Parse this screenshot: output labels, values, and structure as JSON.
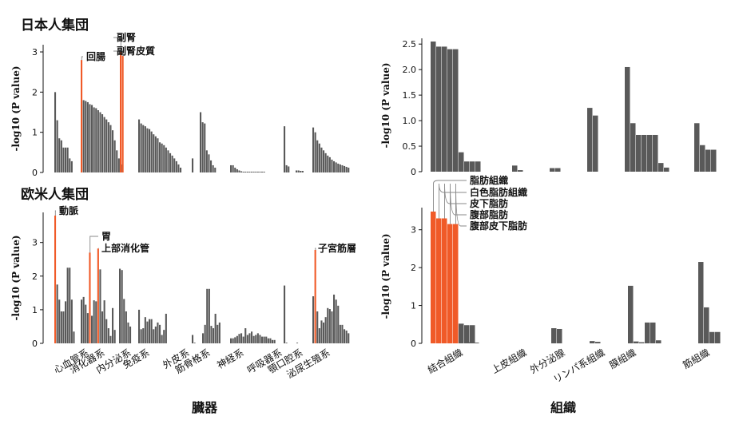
{
  "figure": {
    "x_title_left": "臓器",
    "x_title_right": "組織",
    "ylabel": "-log10 (P value)",
    "highlight_color": "#F05A28",
    "bar_color": "#595959"
  },
  "organ_categories": [
    "心血管系",
    "消化器系",
    "内分泌系",
    "免疫系",
    "外皮系",
    "筋骨格系",
    "神経系",
    "呼吸器系",
    "顎口腔系",
    "泌尿生殖系"
  ],
  "tissue_categories": [
    "結合組織",
    "上皮組織",
    "外分泌腺",
    "リンパ系組織",
    "膜組織",
    "筋組織"
  ],
  "chart_data": [
    {
      "id": "japanese-organ",
      "type": "bar",
      "title": "日本人集団",
      "ylabel": "-log10 (P value)",
      "ylim": [
        0,
        3.1
      ],
      "yticks": [
        0,
        1,
        2,
        3
      ],
      "groups": [
        {
          "category": "心血管系",
          "values": [
            2.0,
            1.3,
            0.85,
            0.8,
            0.62,
            0.62,
            0.62,
            0.35,
            0.28
          ]
        },
        {
          "category": "消化器系",
          "values": [
            2.8,
            1.8,
            1.78,
            1.75,
            1.7,
            1.68,
            1.62,
            1.6,
            1.55,
            1.5,
            1.45,
            1.38,
            1.32,
            1.25,
            1.18,
            1.05,
            0.8,
            0.55,
            0.35,
            0.2
          ]
        },
        {
          "category": "副腎",
          "values": [
            3.0,
            2.9
          ]
        },
        {
          "category": "内分泌系/免疫系",
          "values": [
            1.32,
            1.22,
            1.18,
            1.15,
            1.1,
            1.08,
            1.02,
            0.95,
            0.9,
            0.85,
            0.75,
            0.72,
            0.68,
            0.62,
            0.55,
            0.48,
            0.42,
            0.35,
            0.28,
            0.2,
            0.12
          ]
        },
        {
          "category": "外皮系",
          "values": [
            0.35
          ]
        },
        {
          "category": "筋骨格系",
          "values": [
            1.5,
            1.25,
            1.22,
            0.55,
            0.45,
            0.3,
            0.18,
            0.12
          ]
        },
        {
          "category": "神経系",
          "values": [
            0.18,
            0.18,
            0.12,
            0.08,
            0.05,
            0.03,
            0.02,
            0.02,
            0.02,
            0.02,
            0.02,
            0.02,
            0.02,
            0.02,
            0.02,
            0.02,
            0.02
          ]
        },
        {
          "category": "呼吸器系",
          "values": [
            1.15,
            0.18,
            0.15
          ]
        },
        {
          "category": "顎口腔系",
          "values": [
            0.05,
            0.05,
            0.04,
            0.04
          ]
        },
        {
          "category": "泌尿生殖系",
          "values": [
            1.12,
            1.0,
            0.8,
            0.72,
            0.62,
            0.55,
            0.48,
            0.42,
            0.38,
            0.32,
            0.28,
            0.25,
            0.22,
            0.2,
            0.18,
            0.16,
            0.14,
            0.12
          ]
        }
      ],
      "highlights": [
        {
          "label": "回腸",
          "group": 1,
          "index": 0
        },
        {
          "label": "副腎",
          "group": 2,
          "index": 0
        },
        {
          "label": "副腎皮質",
          "group": 2,
          "index": 1
        }
      ]
    },
    {
      "id": "european-organ",
      "type": "bar",
      "title": "欧米人集団",
      "ylabel": "-log10 (P value)",
      "ylim": [
        0,
        3.8
      ],
      "yticks": [
        0,
        1,
        2,
        3
      ],
      "groups": [
        {
          "category": "心血管系",
          "values": [
            3.8,
            1.75,
            1.3,
            0.95,
            0.95,
            1.25,
            2.25,
            2.25,
            1.3,
            0.35
          ]
        },
        {
          "category": "消化器系",
          "values": [
            1.3,
            1.38,
            1.15,
            0.9,
            2.7,
            0.82,
            1.28,
            1.25,
            2.82,
            2.2,
            0.95,
            1.28,
            0.72,
            0.45,
            0.22,
            1.05,
            0.4
          ]
        },
        {
          "category": "内分泌系",
          "values": [
            2.22,
            2.18,
            1.32,
            0.95,
            0.62,
            0.5
          ]
        },
        {
          "category": "免疫系",
          "values": [
            1.0,
            0.42,
            0.45,
            0.78,
            0.65,
            0.72,
            0.72,
            0.42,
            0.5,
            0.62,
            0.55,
            0.25,
            0.4,
            0.88
          ]
        },
        {
          "category": "外皮系",
          "values": [
            0.25,
            0.02
          ]
        },
        {
          "category": "筋骨格系",
          "values": [
            0.3,
            0.55,
            1.62,
            1.62,
            0.52,
            0.45,
            0.88,
            0.55,
            0.62
          ]
        },
        {
          "category": "神経系",
          "values": [
            0.15,
            0.15,
            0.18,
            0.22,
            0.28,
            0.3,
            0.2,
            0.45,
            0.25,
            0.3,
            0.35,
            0.22,
            0.25,
            0.3,
            0.25,
            0.2,
            0.2,
            0.2,
            0.15,
            0.15,
            0.1,
            0.1
          ]
        },
        {
          "category": "呼吸器系",
          "values": [
            1.72,
            0.02
          ]
        },
        {
          "category": "顎口腔系",
          "values": [
            0.02
          ]
        },
        {
          "category": "泌尿生殖系",
          "values": [
            1.4,
            2.78,
            0.95,
            0.45,
            0.68,
            0.62,
            0.78,
            1.05,
            1.02,
            0.95,
            1.45,
            1.3,
            1.12,
            0.55,
            0.55,
            0.42,
            0.38,
            0.3
          ]
        }
      ],
      "highlights": [
        {
          "label": "動脈",
          "group": 0,
          "index": 0
        },
        {
          "label": "胃",
          "group": 1,
          "index": 4
        },
        {
          "label": "上部消化管",
          "group": 1,
          "index": 8
        },
        {
          "label": "子宮筋層",
          "group": 9,
          "index": 1
        }
      ]
    },
    {
      "id": "japanese-tissue",
      "type": "bar",
      "ylabel": "-log10 (P value)",
      "ylim": [
        0,
        2.55
      ],
      "yticks": [
        0,
        0.5,
        1.0,
        1.5,
        2.0,
        2.5
      ],
      "ytick_labels": [
        "0",
        "0.5",
        "1.0",
        "1.5",
        "2.0",
        "2.5"
      ],
      "groups": [
        {
          "category": "結合組織",
          "values": [
            2.55,
            2.45,
            2.45,
            2.4,
            2.4,
            0.38,
            0.2,
            0.2,
            0.2
          ]
        },
        {
          "category": "上皮組織",
          "values": [
            0.12,
            0.03
          ]
        },
        {
          "category": "外分泌腺",
          "values": [
            0.07,
            0.07
          ]
        },
        {
          "category": "リンパ系組織",
          "values": [
            1.25,
            1.1
          ]
        },
        {
          "category": "膜組織",
          "values": [
            2.05,
            0.95,
            0.72,
            0.72,
            0.72,
            0.72,
            0.17,
            0.08
          ]
        },
        {
          "category": "筋組織",
          "values": [
            0.95,
            0.52,
            0.43,
            0.43
          ]
        }
      ],
      "highlights": []
    },
    {
      "id": "european-tissue",
      "type": "bar",
      "ylabel": "-log10 (P value)",
      "ylim": [
        0,
        3.5
      ],
      "yticks": [
        0,
        1,
        2,
        3
      ],
      "groups": [
        {
          "category": "結合組織",
          "values": [
            3.48,
            3.3,
            3.3,
            3.15,
            3.15,
            0.52,
            0.48,
            0.48
          ]
        },
        {
          "category": "上皮組織",
          "values": [
            0.03,
            0.02
          ]
        },
        {
          "category": "外分泌腺",
          "values": [
            0.4,
            0.38
          ]
        },
        {
          "category": "リンパ系組織",
          "values": [
            0.06,
            0.04
          ]
        },
        {
          "category": "膜組織",
          "values": [
            1.52,
            0.05,
            0.03,
            0.55,
            0.55,
            0.08
          ]
        },
        {
          "category": "筋組織",
          "values": [
            2.15,
            0.95,
            0.3,
            0.3
          ]
        }
      ],
      "highlights": [
        {
          "label": "脂肪組織",
          "group": 0,
          "index": 0
        },
        {
          "label": "白色脂肪組織",
          "group": 0,
          "index": 1
        },
        {
          "label": "皮下脂肪",
          "group": 0,
          "index": 2
        },
        {
          "label": "腹部脂肪",
          "group": 0,
          "index": 3
        },
        {
          "label": "腹部皮下脂肪",
          "group": 0,
          "index": 4
        }
      ]
    }
  ]
}
